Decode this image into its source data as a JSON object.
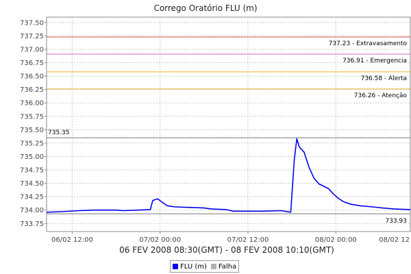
{
  "chart_data": {
    "type": "line",
    "title": "Corrego Oratório FLU (m)",
    "xlabel": "06 FEV 2008 08:30(GMT) - 08 FEV 2008 10:10(GMT)",
    "ylabel": "",
    "x_start": "2008-02-06 08:30",
    "x_end": "2008-02-08 10:10",
    "x_ticks": [
      "06/02 12:00",
      "07/02 00:00",
      "07/02 12:00",
      "08/02 00:00",
      "08/02 12"
    ],
    "x_tick_times": [
      "2008-02-06 12:00",
      "2008-02-07 00:00",
      "2008-02-07 12:00",
      "2008-02-08 00:00",
      "2008-02-08 12:00"
    ],
    "ylim": [
      733.6,
      737.6
    ],
    "y_ticks": [
      "733.75",
      "734.00",
      "734.25",
      "734.50",
      "734.75",
      "735.00",
      "735.25",
      "735.50",
      "735.75",
      "736.00",
      "736.25",
      "736.50",
      "736.75",
      "737.00",
      "737.25",
      "737.50"
    ],
    "grid": true,
    "thresholds": [
      {
        "value": 737.23,
        "label": "737.23 - Extravasamento",
        "color": "#e0504a"
      },
      {
        "value": 736.91,
        "label": "736.91 - Emergencia",
        "color": "#d060c8"
      },
      {
        "value": 736.58,
        "label": "736.58 - Alerta",
        "color": "#e8b020"
      },
      {
        "value": 736.26,
        "label": "736.26 - Atenção",
        "color": "#e8b020"
      }
    ],
    "max_marker": {
      "value": 735.35,
      "label": "735.35"
    },
    "min_marker": {
      "value": 733.93,
      "label": "733.93"
    },
    "series": [
      {
        "name": "FLU (m)",
        "color": "#0000ee",
        "points": [
          [
            "2008-02-06 08:30",
            733.96
          ],
          [
            "2008-02-06 10:30",
            733.97
          ],
          [
            "2008-02-06 13:00",
            733.99
          ],
          [
            "2008-02-06 15:00",
            734.0
          ],
          [
            "2008-02-06 18:00",
            734.0
          ],
          [
            "2008-02-06 19:00",
            733.99
          ],
          [
            "2008-02-06 21:00",
            734.0
          ],
          [
            "2008-02-06 22:40",
            734.01
          ],
          [
            "2008-02-06 23:00",
            734.18
          ],
          [
            "2008-02-06 23:40",
            734.21
          ],
          [
            "2008-02-07 00:20",
            734.14
          ],
          [
            "2008-02-07 01:00",
            734.08
          ],
          [
            "2008-02-07 02:00",
            734.06
          ],
          [
            "2008-02-07 04:00",
            734.05
          ],
          [
            "2008-02-07 06:00",
            734.04
          ],
          [
            "2008-02-07 07:00",
            734.02
          ],
          [
            "2008-02-07 09:00",
            734.01
          ],
          [
            "2008-02-07 10:00",
            733.98
          ],
          [
            "2008-02-07 12:00",
            733.98
          ],
          [
            "2008-02-07 14:00",
            733.98
          ],
          [
            "2008-02-07 16:30",
            733.99
          ],
          [
            "2008-02-07 17:50",
            733.96
          ],
          [
            "2008-02-07 18:20",
            734.95
          ],
          [
            "2008-02-07 18:40",
            735.33
          ],
          [
            "2008-02-07 19:00",
            735.18
          ],
          [
            "2008-02-07 19:40",
            735.08
          ],
          [
            "2008-02-07 20:20",
            734.8
          ],
          [
            "2008-02-07 21:00",
            734.6
          ],
          [
            "2008-02-07 21:40",
            734.49
          ],
          [
            "2008-02-07 23:00",
            734.4
          ],
          [
            "2008-02-07 23:40",
            734.3
          ],
          [
            "2008-02-08 00:20",
            734.22
          ],
          [
            "2008-02-08 01:00",
            734.16
          ],
          [
            "2008-02-08 02:00",
            734.11
          ],
          [
            "2008-02-08 03:20",
            734.08
          ],
          [
            "2008-02-08 05:00",
            734.06
          ],
          [
            "2008-02-08 06:20",
            734.04
          ],
          [
            "2008-02-08 08:00",
            734.02
          ],
          [
            "2008-02-08 10:10",
            734.01
          ]
        ]
      },
      {
        "name": "Falha",
        "color": "#b0b0b0",
        "points": []
      }
    ]
  }
}
